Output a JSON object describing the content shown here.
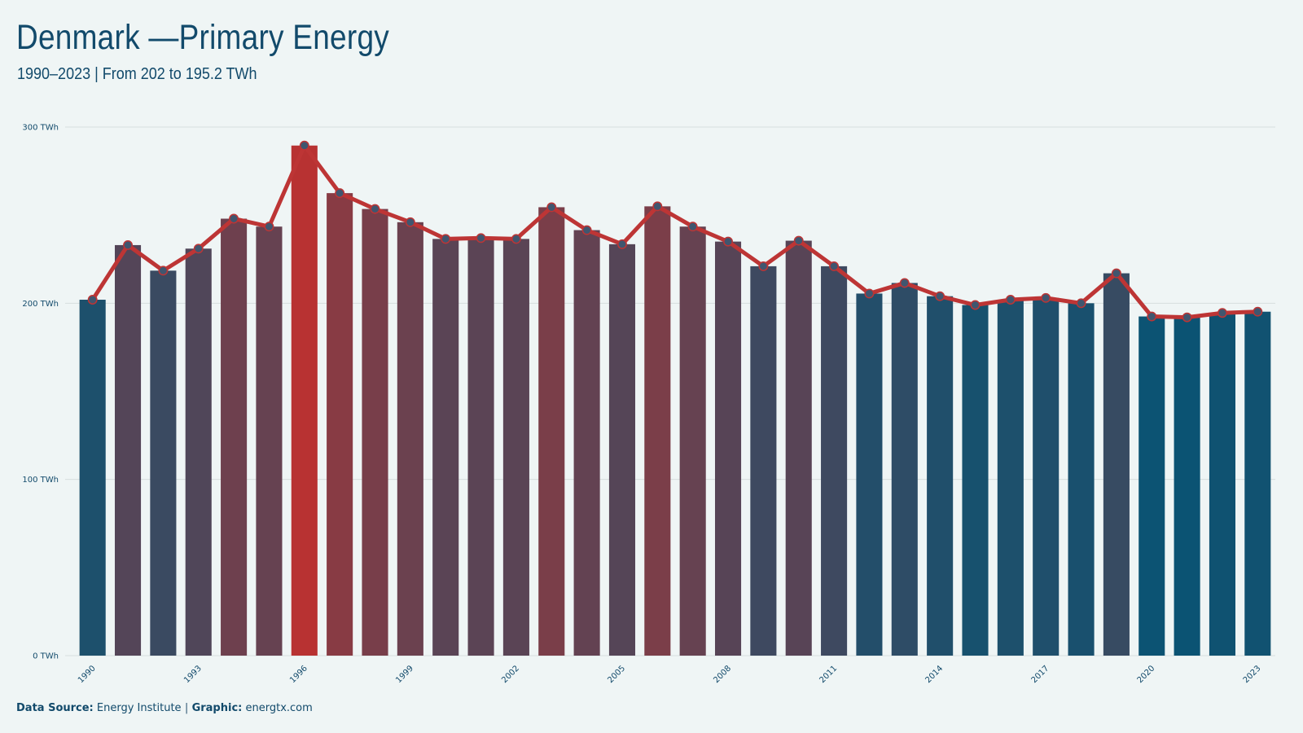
{
  "header": {
    "title": "Denmark —Primary Energy",
    "subtitle": "1990–2023 | From 202 to 195.2 TWh"
  },
  "footer": {
    "source_label": "Data Source:",
    "source_value": "Energy Institute",
    "separator": "|",
    "graphic_label": "Graphic:",
    "graphic_value": "energtx.com"
  },
  "colors": {
    "background": "#eff5f5",
    "text": "#124a6b",
    "low": "#0b5373",
    "high": "#b83232",
    "line": "#bd3535",
    "marker": "#40566f",
    "grid": "#d7dede"
  },
  "chart_data": {
    "type": "bar",
    "title": "Denmark —Primary Energy",
    "subtitle": "1990–2023 | From 202 to 195.2 TWh",
    "unit": "TWh",
    "ylim": [
      0,
      300
    ],
    "yticks": [
      "0 TWh",
      "100 TWh",
      "200 TWh",
      "300 TWh"
    ],
    "ytick_values": [
      0,
      100,
      200,
      300
    ],
    "grid": true,
    "xtick_labels": [
      "1990",
      "1993",
      "1996",
      "1999",
      "2002",
      "2005",
      "2008",
      "2011",
      "2014",
      "2017",
      "2020",
      "2023"
    ],
    "categories": [
      "1990",
      "1991",
      "1992",
      "1993",
      "1994",
      "1995",
      "1996",
      "1997",
      "1998",
      "1999",
      "2000",
      "2001",
      "2002",
      "2003",
      "2004",
      "2005",
      "2006",
      "2007",
      "2008",
      "2009",
      "2010",
      "2011",
      "2012",
      "2013",
      "2014",
      "2015",
      "2016",
      "2017",
      "2018",
      "2019",
      "2020",
      "2021",
      "2022",
      "2023"
    ],
    "series": [
      {
        "values": [
          202.0,
          233.0,
          218.5,
          231.0,
          248.0,
          243.5,
          289.5,
          262.5,
          253.5,
          246.0,
          236.5,
          237.0,
          236.5,
          254.5,
          241.5,
          233.5,
          255.0,
          243.5,
          235.0,
          221.0,
          235.5,
          221.0,
          205.5,
          211.5,
          204.0,
          199.0,
          202.0,
          203.0,
          200.0,
          217.0,
          192.5,
          192.0,
          194.5,
          195.2
        ]
      }
    ]
  }
}
